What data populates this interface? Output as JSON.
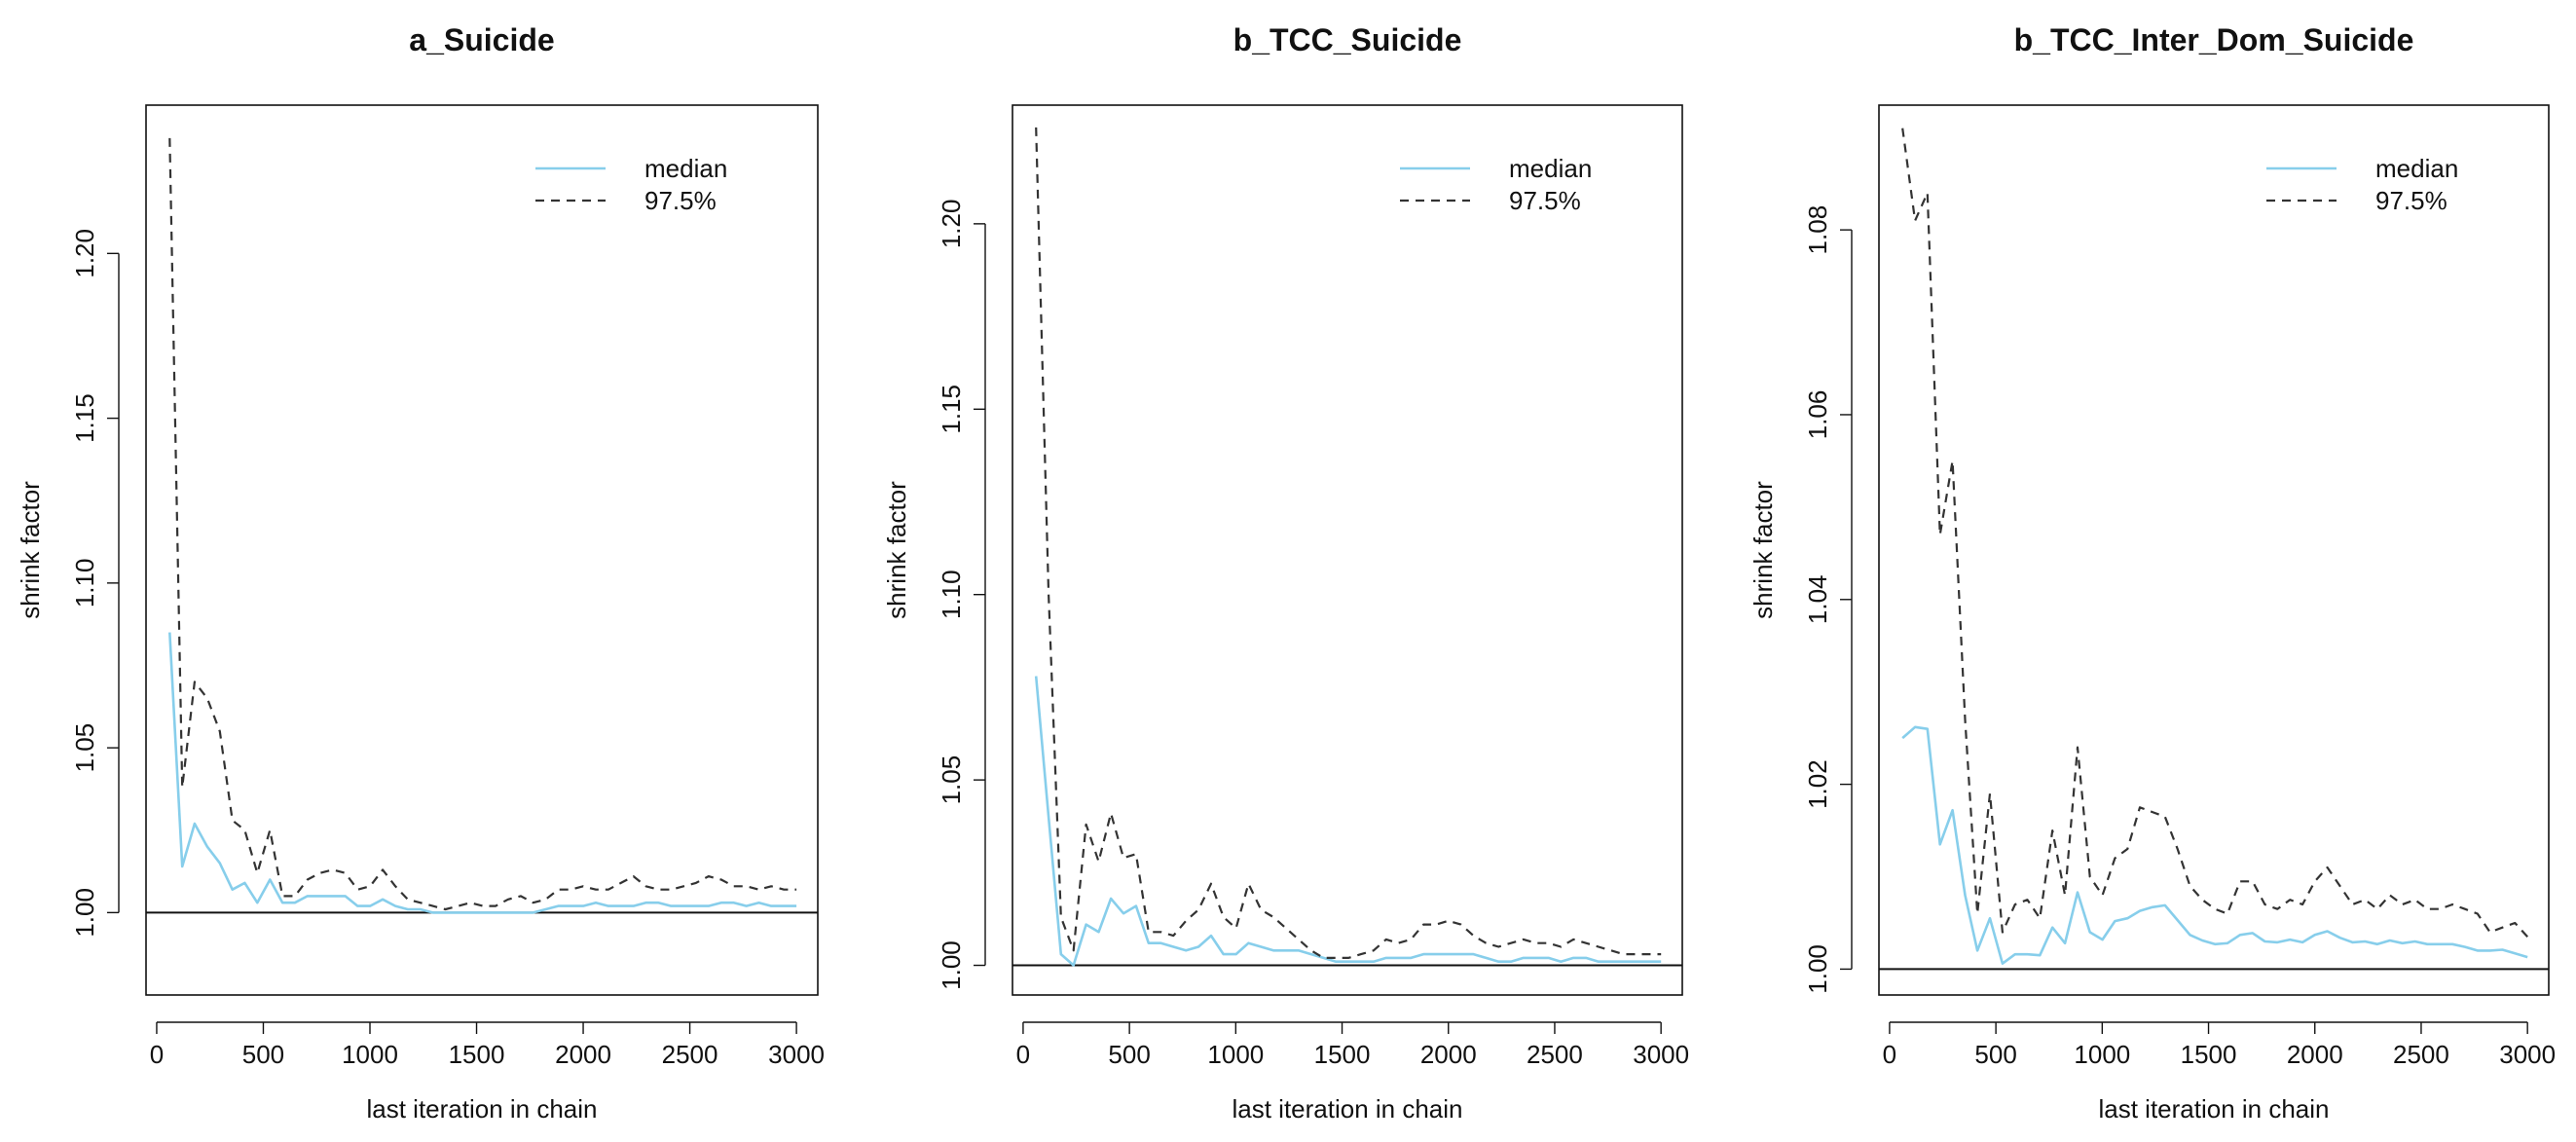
{
  "chart_data": [
    {
      "type": "line",
      "title": "a_Suicide",
      "xlabel": "last iteration in chain",
      "ylabel": "shrink factor",
      "xlim": [
        -50,
        3100
      ],
      "ylim": [
        0.975,
        1.245
      ],
      "xticks": [
        0,
        500,
        1000,
        1500,
        2000,
        2500,
        3000
      ],
      "xtick_labels": [
        "0",
        "500",
        "1000",
        "1500",
        "2000",
        "2500",
        "3000"
      ],
      "yticks": [
        1.0,
        1.05,
        1.1,
        1.15,
        1.2
      ],
      "ytick_labels": [
        "1.00",
        "1.05",
        "1.10",
        "1.15",
        "1.20"
      ],
      "reference_line": 1.0,
      "legend": {
        "position": "top-right",
        "entries": [
          "median",
          "97.5%"
        ]
      },
      "x": [
        61,
        120,
        178,
        237,
        296,
        355,
        413,
        472,
        531,
        590,
        648,
        707,
        766,
        825,
        884,
        942,
        1001,
        1060,
        1119,
        1177,
        1236,
        1295,
        1354,
        1413,
        1471,
        1530,
        1589,
        1648,
        1707,
        1765,
        1824,
        1883,
        1942,
        2000,
        2059,
        2118,
        2177,
        2236,
        2294,
        2353,
        2412,
        2471,
        2529,
        2588,
        2647,
        2706,
        2765,
        2824,
        2882,
        2941,
        3000
      ],
      "series": [
        {
          "name": "median",
          "color": "#87ceeb",
          "dash": "solid",
          "values": [
            1.085,
            1.014,
            1.027,
            1.02,
            1.015,
            1.007,
            1.009,
            1.003,
            1.01,
            1.003,
            1.003,
            1.005,
            1.005,
            1.005,
            1.005,
            1.002,
            1.002,
            1.004,
            1.002,
            1.001,
            1.001,
            1.0,
            1.0,
            1.0,
            1.0,
            1.0,
            1.0,
            1.0,
            1.0,
            1.0,
            1.001,
            1.002,
            1.002,
            1.002,
            1.003,
            1.002,
            1.002,
            1.002,
            1.003,
            1.003,
            1.002,
            1.002,
            1.002,
            1.002,
            1.003,
            1.003,
            1.002,
            1.003,
            1.002,
            1.002,
            1.002
          ]
        },
        {
          "name": "97.5%",
          "color": "#333333",
          "dash": "dashed",
          "values": [
            1.235,
            1.038,
            1.07,
            1.065,
            1.055,
            1.028,
            1.025,
            1.012,
            1.025,
            1.005,
            1.005,
            1.01,
            1.012,
            1.013,
            1.012,
            1.007,
            1.008,
            1.013,
            1.008,
            1.004,
            1.003,
            1.002,
            1.001,
            1.002,
            1.003,
            1.002,
            1.002,
            1.004,
            1.005,
            1.003,
            1.004,
            1.007,
            1.007,
            1.008,
            1.007,
            1.007,
            1.009,
            1.011,
            1.008,
            1.007,
            1.007,
            1.008,
            1.009,
            1.011,
            1.01,
            1.008,
            1.008,
            1.007,
            1.008,
            1.007,
            1.007
          ]
        }
      ]
    },
    {
      "type": "line",
      "title": "b_TCC_Suicide",
      "xlabel": "last iteration in chain",
      "ylabel": "shrink factor",
      "xlim": [
        -50,
        3100
      ],
      "ylim": [
        0.992,
        1.232
      ],
      "xticks": [
        0,
        500,
        1000,
        1500,
        2000,
        2500,
        3000
      ],
      "xtick_labels": [
        "0",
        "500",
        "1000",
        "1500",
        "2000",
        "2500",
        "3000"
      ],
      "yticks": [
        1.0,
        1.05,
        1.1,
        1.15,
        1.2
      ],
      "ytick_labels": [
        "1.00",
        "1.05",
        "1.10",
        "1.15",
        "1.20"
      ],
      "reference_line": 1.0,
      "legend": {
        "position": "top-right",
        "entries": [
          "median",
          "97.5%"
        ]
      },
      "x": [
        61,
        120,
        178,
        237,
        296,
        355,
        413,
        472,
        531,
        590,
        648,
        707,
        766,
        825,
        884,
        942,
        1001,
        1060,
        1119,
        1177,
        1236,
        1295,
        1354,
        1413,
        1471,
        1530,
        1589,
        1648,
        1707,
        1765,
        1824,
        1883,
        1942,
        2000,
        2059,
        2118,
        2177,
        2236,
        2294,
        2353,
        2412,
        2471,
        2529,
        2588,
        2647,
        2706,
        2765,
        2824,
        2882,
        2941,
        3000
      ],
      "series": [
        {
          "name": "median",
          "color": "#87ceeb",
          "dash": "solid",
          "values": [
            1.078,
            1.04,
            1.003,
            1.0,
            1.011,
            1.009,
            1.018,
            1.014,
            1.016,
            1.006,
            1.006,
            1.005,
            1.004,
            1.005,
            1.008,
            1.003,
            1.003,
            1.006,
            1.005,
            1.004,
            1.004,
            1.004,
            1.003,
            1.002,
            1.001,
            1.001,
            1.001,
            1.001,
            1.002,
            1.002,
            1.002,
            1.003,
            1.003,
            1.003,
            1.003,
            1.003,
            1.002,
            1.001,
            1.001,
            1.002,
            1.002,
            1.002,
            1.001,
            1.002,
            1.002,
            1.001,
            1.001,
            1.001,
            1.001,
            1.001,
            1.001
          ]
        },
        {
          "name": "97.5%",
          "color": "#333333",
          "dash": "dashed",
          "values": [
            1.226,
            1.1,
            1.013,
            1.004,
            1.038,
            1.028,
            1.041,
            1.029,
            1.03,
            1.009,
            1.009,
            1.008,
            1.012,
            1.015,
            1.022,
            1.013,
            1.01,
            1.022,
            1.015,
            1.013,
            1.01,
            1.007,
            1.004,
            1.002,
            1.002,
            1.002,
            1.003,
            1.004,
            1.007,
            1.006,
            1.007,
            1.011,
            1.011,
            1.012,
            1.011,
            1.008,
            1.006,
            1.005,
            1.006,
            1.007,
            1.006,
            1.006,
            1.005,
            1.007,
            1.006,
            1.005,
            1.004,
            1.003,
            1.003,
            1.003,
            1.003
          ]
        }
      ]
    },
    {
      "type": "line",
      "title": "b_TCC_Inter_Dom_Suicide",
      "xlabel": "last iteration in chain",
      "ylabel": "shrink factor",
      "xlim": [
        -50,
        3100
      ],
      "ylim": [
        0.9972,
        1.0935
      ],
      "xticks": [
        0,
        500,
        1000,
        1500,
        2000,
        2500,
        3000
      ],
      "xtick_labels": [
        "0",
        "500",
        "1000",
        "1500",
        "2000",
        "2500",
        "3000"
      ],
      "yticks": [
        1.0,
        1.02,
        1.04,
        1.06,
        1.08
      ],
      "ytick_labels": [
        "1.00",
        "1.02",
        "1.04",
        "1.06",
        "1.08"
      ],
      "reference_line": 1.0,
      "legend": {
        "position": "top-right",
        "entries": [
          "median",
          "97.5%"
        ]
      },
      "x": [
        61,
        120,
        178,
        237,
        296,
        355,
        413,
        472,
        531,
        590,
        648,
        707,
        766,
        825,
        884,
        942,
        1001,
        1060,
        1119,
        1177,
        1236,
        1295,
        1354,
        1413,
        1471,
        1530,
        1589,
        1648,
        1707,
        1765,
        1824,
        1883,
        1942,
        2000,
        2059,
        2118,
        2177,
        2236,
        2294,
        2353,
        2412,
        2471,
        2529,
        2588,
        2647,
        2706,
        2765,
        2824,
        2882,
        2941,
        3000
      ],
      "series": [
        {
          "name": "median",
          "color": "#87ceeb",
          "dash": "solid",
          "values": [
            1.025,
            1.0262,
            1.026,
            1.0135,
            1.0172,
            1.008,
            1.002,
            1.0055,
            1.0006,
            1.0016,
            1.0016,
            1.0015,
            1.0045,
            1.0028,
            1.0083,
            1.004,
            1.0032,
            1.0052,
            1.0055,
            1.0063,
            1.0067,
            1.0069,
            1.0053,
            1.0037,
            1.0031,
            1.0027,
            1.0028,
            1.0037,
            1.0039,
            1.003,
            1.0029,
            1.0032,
            1.0029,
            1.0037,
            1.0041,
            1.0034,
            1.0029,
            1.003,
            1.0027,
            1.0031,
            1.0028,
            1.003,
            1.0027,
            1.0027,
            1.0027,
            1.0024,
            1.002,
            1.002,
            1.0021,
            1.0017,
            1.0013
          ]
        },
        {
          "name": "97.5%",
          "color": "#333333",
          "dash": "dashed",
          "values": [
            1.091,
            1.081,
            1.084,
            1.047,
            1.055,
            1.027,
            1.006,
            1.019,
            1.004,
            1.007,
            1.0075,
            1.0055,
            1.015,
            1.008,
            1.024,
            1.01,
            1.008,
            1.012,
            1.013,
            1.0175,
            1.017,
            1.0165,
            1.013,
            1.009,
            1.0075,
            1.0065,
            1.006,
            1.0095,
            1.0095,
            1.007,
            1.0065,
            1.0075,
            1.007,
            1.0095,
            1.011,
            1.009,
            1.007,
            1.0075,
            1.0065,
            1.008,
            1.007,
            1.0075,
            1.0065,
            1.0065,
            1.007,
            1.0065,
            1.006,
            1.004,
            1.0045,
            1.005,
            1.0035
          ]
        }
      ]
    }
  ]
}
